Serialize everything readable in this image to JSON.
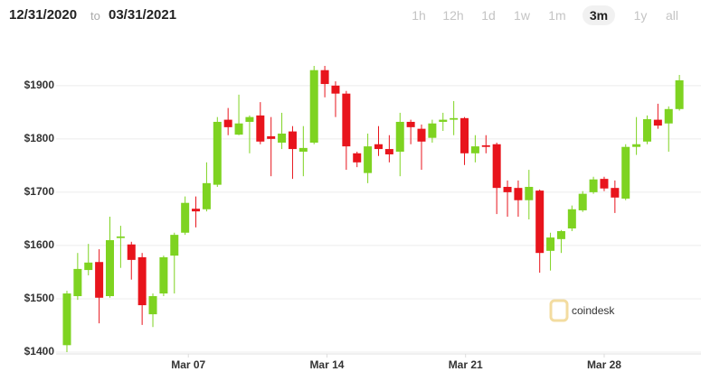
{
  "header": {
    "from": "12/31/2020",
    "to_word": "to",
    "to": "03/31/2021",
    "ranges": [
      "1h",
      "12h",
      "1d",
      "1w",
      "1m",
      "3m",
      "1y",
      "all"
    ],
    "selected": "3m"
  },
  "chart_data": {
    "type": "candlestick",
    "watermark": "coindesk",
    "up_color": "#7ed321",
    "down_color": "#e8141c",
    "grid": true,
    "x": [
      0,
      1,
      2,
      3,
      4,
      5,
      6,
      7,
      8,
      9,
      10,
      11,
      12,
      13,
      14,
      15,
      16,
      17,
      18,
      19,
      20,
      21,
      22,
      23,
      24,
      25,
      26,
      27,
      28,
      29,
      30,
      31,
      32,
      33,
      34,
      35,
      36,
      37,
      38,
      39,
      40,
      41,
      42,
      43,
      44,
      45,
      46,
      47,
      48,
      49,
      50,
      51,
      52,
      53,
      54,
      55,
      56,
      57
    ],
    "open": [
      1413,
      1505,
      1554,
      1569,
      1505,
      1614,
      1602,
      1578,
      1471,
      1510,
      1581,
      1624,
      1669,
      1668,
      1714,
      1836,
      1808,
      1832,
      1844,
      1805,
      1793,
      1814,
      1776,
      1793,
      1929,
      1900,
      1885,
      1773,
      1736,
      1790,
      1781,
      1776,
      1832,
      1819,
      1802,
      1832,
      1836,
      1839,
      1773,
      1788,
      1790,
      1710,
      1708,
      1685,
      1703,
      1590,
      1612,
      1632,
      1666,
      1700,
      1725,
      1708,
      1688,
      1785,
      1795,
      1836,
      1829,
      1856
    ],
    "high": [
      1515,
      1586,
      1603,
      1593,
      1654,
      1637,
      1607,
      1586,
      1510,
      1581,
      1624,
      1692,
      1692,
      1756,
      1841,
      1858,
      1883,
      1844,
      1869,
      1841,
      1849,
      1824,
      1824,
      1937,
      1937,
      1908,
      1890,
      1776,
      1810,
      1824,
      1807,
      1849,
      1836,
      1827,
      1836,
      1849,
      1871,
      1841,
      1807,
      1807,
      1793,
      1722,
      1722,
      1742,
      1705,
      1624,
      1629,
      1675,
      1702,
      1729,
      1729,
      1722,
      1790,
      1841,
      1844,
      1866,
      1861,
      1920
    ],
    "low": [
      1400,
      1498,
      1544,
      1454,
      1502,
      1558,
      1536,
      1451,
      1447,
      1505,
      1510,
      1620,
      1634,
      1664,
      1710,
      1807,
      1807,
      1773,
      1790,
      1730,
      1781,
      1725,
      1730,
      1790,
      1878,
      1841,
      1742,
      1747,
      1717,
      1768,
      1756,
      1730,
      1790,
      1742,
      1793,
      1815,
      1807,
      1751,
      1756,
      1773,
      1659,
      1654,
      1654,
      1649,
      1549,
      1553,
      1586,
      1627,
      1663,
      1697,
      1702,
      1661,
      1685,
      1770,
      1790,
      1819,
      1776,
      1853
    ],
    "close": [
      1510,
      1556,
      1568,
      1502,
      1610,
      1617,
      1573,
      1488,
      1505,
      1578,
      1620,
      1680,
      1664,
      1717,
      1832,
      1822,
      1829,
      1841,
      1795,
      1800,
      1810,
      1781,
      1783,
      1929,
      1903,
      1885,
      1786,
      1756,
      1786,
      1781,
      1771,
      1832,
      1822,
      1795,
      1829,
      1836,
      1839,
      1773,
      1786,
      1785,
      1708,
      1700,
      1685,
      1710,
      1586,
      1615,
      1627,
      1668,
      1697,
      1724,
      1707,
      1690,
      1785,
      1790,
      1837,
      1825,
      1856,
      1910
    ],
    "xlim": [
      -1,
      58
    ],
    "xticks": [
      {
        "value": 11.3,
        "label": "Mar 07"
      },
      {
        "value": 24.2,
        "label": "Mar 14"
      },
      {
        "value": 37.1,
        "label": "Mar 21"
      },
      {
        "value": 50,
        "label": "Mar 28"
      }
    ],
    "ylim": [
      1380,
      1950
    ],
    "yticks": [
      {
        "value": 1400,
        "label": "$1400"
      },
      {
        "value": 1500,
        "label": "$1500"
      },
      {
        "value": 1600,
        "label": "$1600"
      },
      {
        "value": 1700,
        "label": "$1700"
      },
      {
        "value": 1800,
        "label": "$1800"
      },
      {
        "value": 1900,
        "label": "$1900"
      }
    ]
  }
}
